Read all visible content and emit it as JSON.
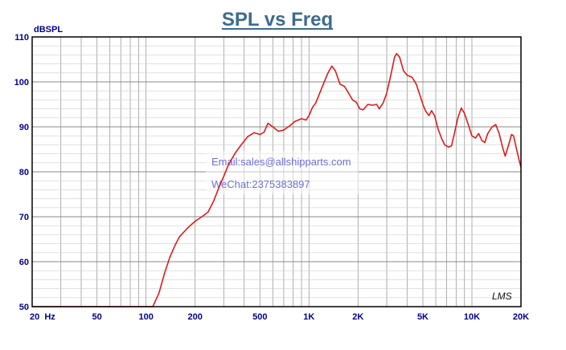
{
  "chart_data": {
    "type": "line",
    "title": "SPL vs Freq",
    "ylabel": "dBSPL",
    "xlabel": "",
    "x_scale": "log",
    "xlim": [
      20,
      20000
    ],
    "ylim": [
      50,
      110
    ],
    "grid": true,
    "x_tick_labels": [
      {
        "value": 20,
        "label": "20  Hz"
      },
      {
        "value": 50,
        "label": "50"
      },
      {
        "value": 100,
        "label": "100"
      },
      {
        "value": 200,
        "label": "200"
      },
      {
        "value": 500,
        "label": "500"
      },
      {
        "value": 1000,
        "label": "1K"
      },
      {
        "value": 2000,
        "label": "2K"
      },
      {
        "value": 5000,
        "label": "5K"
      },
      {
        "value": 10000,
        "label": "10K"
      },
      {
        "value": 20000,
        "label": "20K"
      }
    ],
    "y_ticks": [
      50,
      60,
      70,
      80,
      90,
      100,
      110
    ],
    "series": [
      {
        "color": "#dd1c1c",
        "points": [
          [
            20,
            50
          ],
          [
            50,
            50
          ],
          [
            100,
            50
          ],
          [
            110,
            50
          ],
          [
            120,
            53
          ],
          [
            130,
            57.5
          ],
          [
            140,
            61
          ],
          [
            150,
            63.5
          ],
          [
            160,
            65.5
          ],
          [
            180,
            67.5
          ],
          [
            200,
            69
          ],
          [
            220,
            70
          ],
          [
            240,
            71
          ],
          [
            260,
            73.5
          ],
          [
            280,
            76.5
          ],
          [
            300,
            79
          ],
          [
            320,
            81.5
          ],
          [
            350,
            84
          ],
          [
            380,
            85.8
          ],
          [
            420,
            87.8
          ],
          [
            460,
            88.7
          ],
          [
            500,
            88.3
          ],
          [
            530,
            88.8
          ],
          [
            560,
            90.8
          ],
          [
            600,
            90
          ],
          [
            650,
            89
          ],
          [
            700,
            89.3
          ],
          [
            760,
            90.2
          ],
          [
            820,
            91.2
          ],
          [
            900,
            91.8
          ],
          [
            960,
            91.5
          ],
          [
            1000,
            92.5
          ],
          [
            1050,
            94.3
          ],
          [
            1100,
            95.3
          ],
          [
            1200,
            98.7
          ],
          [
            1300,
            101.8
          ],
          [
            1380,
            103.5
          ],
          [
            1450,
            102.5
          ],
          [
            1550,
            99.5
          ],
          [
            1650,
            99
          ],
          [
            1750,
            97.5
          ],
          [
            1850,
            96
          ],
          [
            1950,
            95.5
          ],
          [
            2050,
            94
          ],
          [
            2150,
            93.8
          ],
          [
            2300,
            95
          ],
          [
            2450,
            94.8
          ],
          [
            2600,
            95
          ],
          [
            2700,
            94
          ],
          [
            2850,
            95.3
          ],
          [
            3000,
            97.5
          ],
          [
            3200,
            102
          ],
          [
            3350,
            105.5
          ],
          [
            3450,
            106.3
          ],
          [
            3600,
            105.5
          ],
          [
            3800,
            102.5
          ],
          [
            4000,
            101.5
          ],
          [
            4300,
            101
          ],
          [
            4550,
            99.5
          ],
          [
            4800,
            97
          ],
          [
            5000,
            95
          ],
          [
            5200,
            93.5
          ],
          [
            5450,
            92.5
          ],
          [
            5650,
            93.6
          ],
          [
            5900,
            92.5
          ],
          [
            6200,
            89.5
          ],
          [
            6500,
            87.5
          ],
          [
            6800,
            86
          ],
          [
            7200,
            85.5
          ],
          [
            7500,
            85.8
          ],
          [
            7800,
            88.5
          ],
          [
            8200,
            92
          ],
          [
            8600,
            94.2
          ],
          [
            9000,
            93
          ],
          [
            9500,
            90.5
          ],
          [
            10000,
            88
          ],
          [
            10500,
            87.5
          ],
          [
            11000,
            88.5
          ],
          [
            11500,
            87
          ],
          [
            12000,
            86.5
          ],
          [
            12500,
            88.5
          ],
          [
            13300,
            90
          ],
          [
            14000,
            90.5
          ],
          [
            14700,
            88.5
          ],
          [
            15400,
            85.5
          ],
          [
            16000,
            83.5
          ],
          [
            16800,
            86
          ],
          [
            17500,
            88.3
          ],
          [
            18000,
            88
          ],
          [
            18800,
            85
          ],
          [
            19500,
            82.5
          ],
          [
            20000,
            81
          ]
        ]
      }
    ]
  },
  "watermark": {
    "email": "Email:sales@allshipparts.com",
    "wechat": "WeChat:2375383897",
    "logo": "LMS"
  }
}
